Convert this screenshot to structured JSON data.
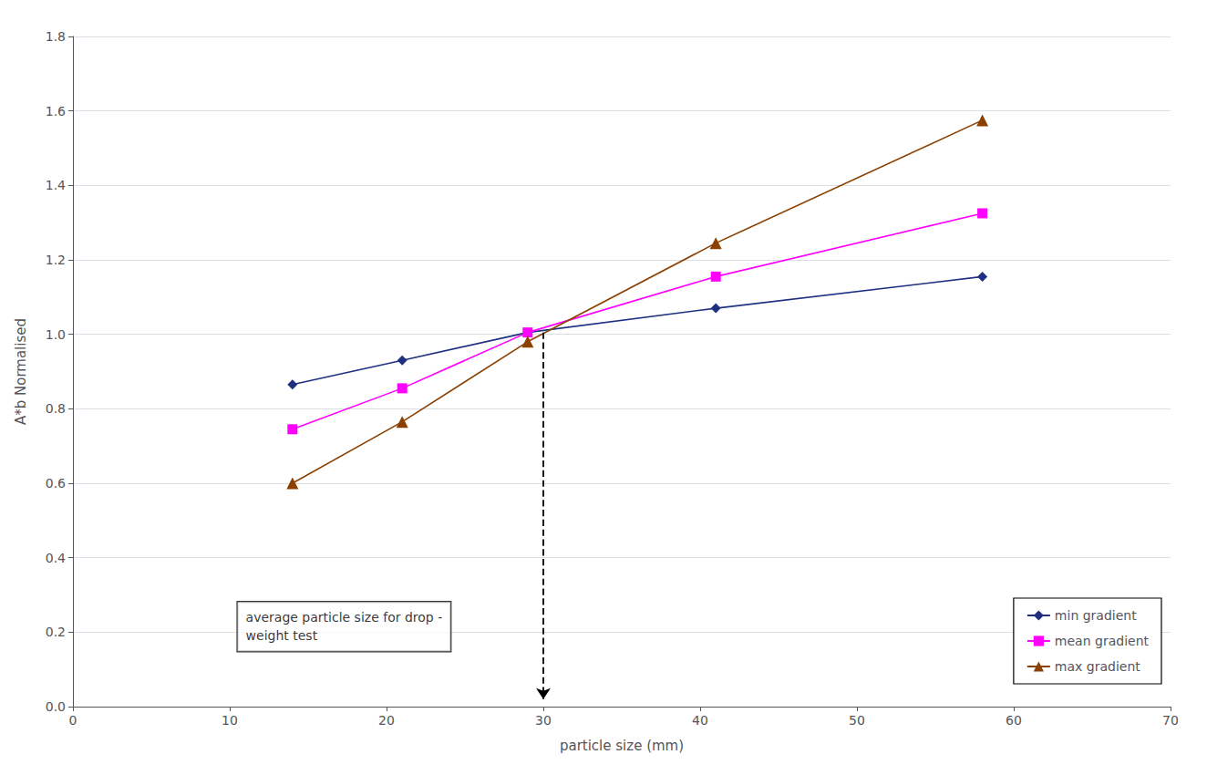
{
  "chart_data": {
    "type": "line",
    "xlabel": "particle size (mm)",
    "ylabel": "A*b Normalised",
    "xlim": [
      0,
      70
    ],
    "ylim": [
      0,
      1.8
    ],
    "xticks": [
      0,
      10,
      20,
      30,
      40,
      50,
      60,
      70
    ],
    "yticks": [
      {
        "value": 0,
        "label": "0.0"
      },
      0.2,
      0.4,
      0.6,
      0.8,
      {
        "value": 1.0,
        "label": "1.0"
      },
      1.2,
      1.4,
      1.6,
      1.8
    ],
    "grid": "y",
    "legend": "lower right",
    "series": [
      {
        "name": "min gradient",
        "color": "#1f3080",
        "marker": "diamond",
        "x": [
          14,
          21,
          29,
          41,
          58
        ],
        "values": [
          0.865,
          0.93,
          1.005,
          1.07,
          1.155
        ]
      },
      {
        "name": "mean gradient",
        "color": "#ff00ff",
        "marker": "square",
        "x": [
          14,
          21,
          29,
          41,
          58
        ],
        "values": [
          0.745,
          0.855,
          1.005,
          1.155,
          1.325
        ]
      },
      {
        "name": "max gradient",
        "color": "#8B4000",
        "marker": "triangle",
        "x": [
          14,
          21,
          29,
          41,
          58
        ],
        "values": [
          0.6,
          0.765,
          0.98,
          1.245,
          1.575
        ]
      }
    ],
    "annotations": [
      {
        "text": "average particle size for drop -\nweight test",
        "x": 10.5,
        "y": 0.215
      }
    ],
    "arrow": {
      "x": 30,
      "y_top": 1.005,
      "y_dash_end": 0.04,
      "y_end": 0.02,
      "line_style": "dashed"
    }
  }
}
